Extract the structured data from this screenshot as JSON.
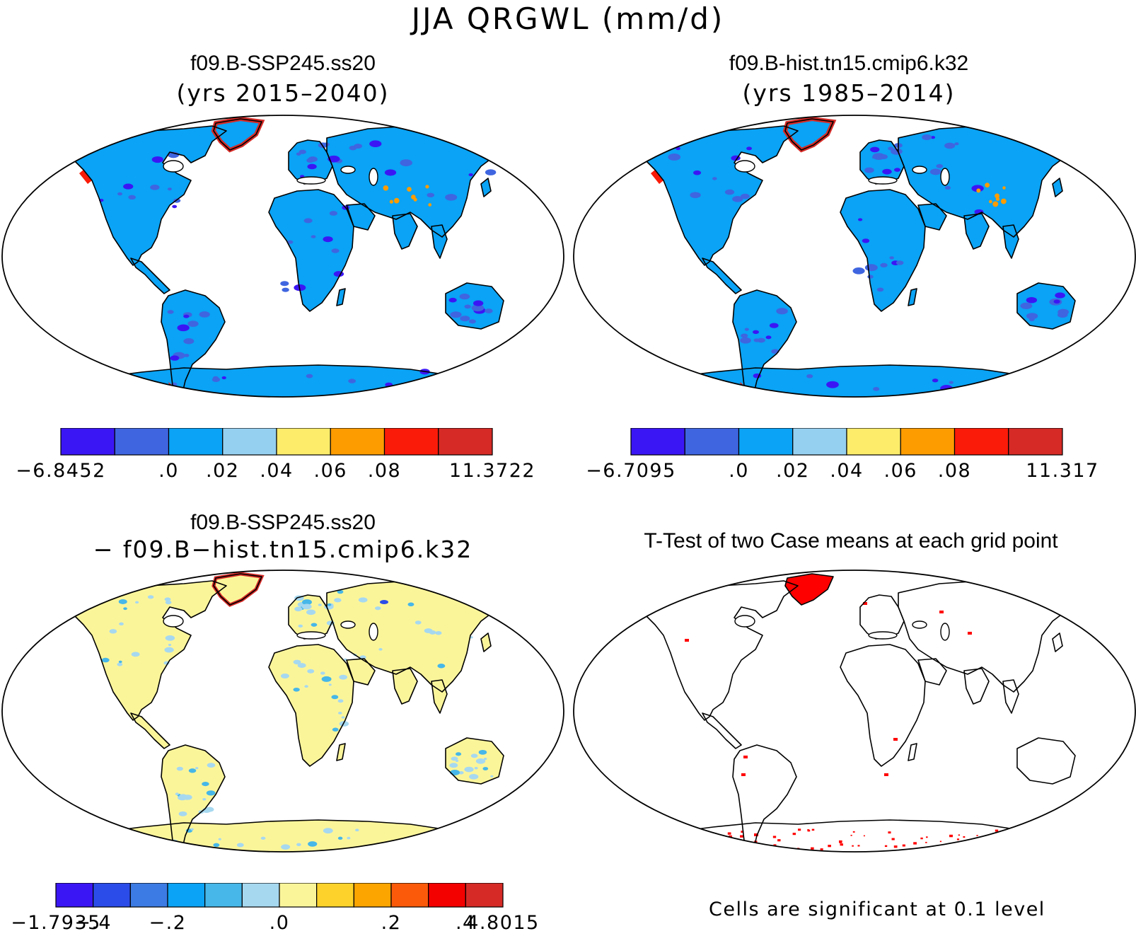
{
  "figure": {
    "title": "JJA QRGWL (mm/d)",
    "footnote": "Cells are significant at 0.1 level"
  },
  "panels": [
    {
      "id": "case1",
      "title": "f09.B-SSP245.ss20",
      "subtitle": "(yrs 2015–2040)",
      "land_color": "#0aa3f5",
      "colorbar": {
        "colors": [
          "#3b16f5",
          "#3f65e0",
          "#0aa3f5",
          "#96d0f0",
          "#fcec6a",
          "#fd9c00",
          "#fa1b08",
          "#d52a26"
        ],
        "labels": [
          "−6.8452",
          ".0",
          ".02",
          ".04",
          ".06",
          ".08",
          "11.3722"
        ]
      }
    },
    {
      "id": "case2",
      "title": "f09.B-hist.tn15.cmip6.k32",
      "subtitle": "(yrs 1985–2014)",
      "land_color": "#0aa3f5",
      "colorbar": {
        "colors": [
          "#3b16f5",
          "#3f65e0",
          "#0aa3f5",
          "#96d0f0",
          "#fcec6a",
          "#fd9c00",
          "#fa1b08",
          "#d52a26"
        ],
        "labels": [
          "−6.7095",
          ".0",
          ".02",
          ".04",
          ".06",
          ".08",
          "11.317"
        ]
      }
    },
    {
      "id": "difference",
      "title": "f09.B-SSP245.ss20",
      "subtitle": "− f09.B−hist.tn15.cmip6.k32",
      "land_color": "#fbf59a",
      "colorbar": {
        "colors": [
          "#3b16f5",
          "#2b4ce8",
          "#3c7be3",
          "#0aa3f5",
          "#46b7e8",
          "#a6d8f0",
          "#fbf59a",
          "#fdd32b",
          "#fca400",
          "#fb5a0a",
          "#f30000",
          "#d52a26"
        ],
        "labels": [
          "−1.7935",
          "−.4",
          "−.2",
          ".0",
          ".2",
          ".4",
          "4.8015"
        ]
      }
    },
    {
      "id": "ttest",
      "title": "T-Test of two Case means at each grid point",
      "land_color": "#ffffff",
      "significance_color": "#ff0000"
    }
  ]
}
